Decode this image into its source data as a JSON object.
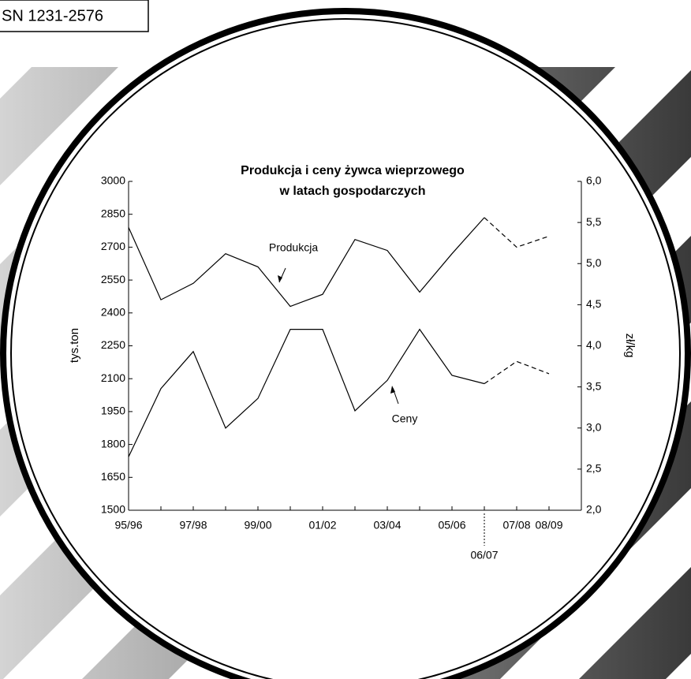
{
  "header": {
    "issn": "SN 1231-2576"
  },
  "chart_data": {
    "type": "line",
    "title": [
      "Produkcja i ceny żywca wieprzowego",
      "w latach gospodarczych"
    ],
    "categories": [
      "95/96",
      null,
      "97/98",
      null,
      "99/00",
      null,
      "01/02",
      null,
      "03/04",
      null,
      "05/06",
      "06/07",
      "07/08",
      "08/09"
    ],
    "dash_from_index": 11,
    "series": [
      {
        "name": "Produkcja",
        "color": "#000000",
        "axis": "y",
        "values": [
          2790,
          2460,
          2535,
          2670,
          2610,
          2430,
          2485,
          2735,
          2685,
          2495,
          2670,
          2835,
          2700,
          2750
        ]
      },
      {
        "name": "Ceny",
        "color": "#000000",
        "axis": "y2",
        "values": [
          2.65,
          3.48,
          3.93,
          3.0,
          3.36,
          4.2,
          4.2,
          3.21,
          3.58,
          4.2,
          3.64,
          3.54,
          3.81,
          3.66
        ]
      }
    ],
    "ylabel": "tys.ton",
    "y2label": "zł/kg",
    "ylim": [
      1500,
      3000
    ],
    "yticks": [
      1500,
      1650,
      1800,
      1950,
      2100,
      2250,
      2400,
      2550,
      2700,
      2850,
      3000
    ],
    "y2lim": [
      2,
      6
    ],
    "y2ticks": [
      {
        "value": 2,
        "label": "2,0"
      },
      {
        "value": 2.5,
        "label": "2,5"
      },
      {
        "value": 3,
        "label": "3,0"
      },
      {
        "value": 3.5,
        "label": "3,5"
      },
      {
        "value": 4,
        "label": "4,0"
      },
      {
        "value": 4.5,
        "label": "4,5"
      },
      {
        "value": 5,
        "label": "5,0"
      },
      {
        "value": 5.5,
        "label": "5,5"
      },
      {
        "value": 6,
        "label": "6,0"
      }
    ],
    "grid": false
  }
}
